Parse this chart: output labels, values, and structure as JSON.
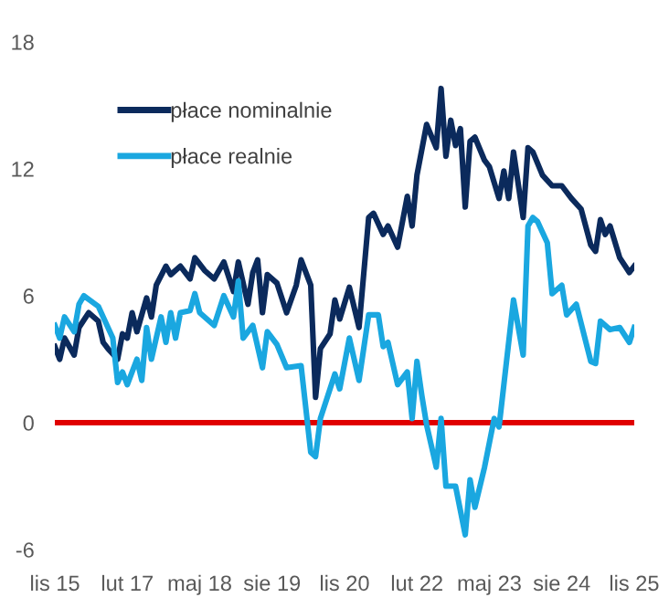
{
  "chart_data": {
    "type": "line",
    "xlim": [
      "2015-11",
      "2025-11"
    ],
    "ylim": [
      -6,
      18
    ],
    "yticks": [
      -6,
      0,
      6,
      12,
      18
    ],
    "xticks": [
      {
        "value": "2015-11",
        "label": "lis 15"
      },
      {
        "value": "2017-02",
        "label": "lut 17"
      },
      {
        "value": "2018-05",
        "label": "maj 18"
      },
      {
        "value": "2019-08",
        "label": "sie 19"
      },
      {
        "value": "2020-11",
        "label": "lis 20"
      },
      {
        "value": "2022-02",
        "label": "lut 22"
      },
      {
        "value": "2023-05",
        "label": "maj 23"
      },
      {
        "value": "2024-08",
        "label": "sie 24"
      },
      {
        "value": "2025-11",
        "label": "lis 25"
      }
    ],
    "grid": false,
    "legend": "top left",
    "line_style": "solid",
    "marker": "none",
    "ref_lines": [
      {
        "axis": "y",
        "value": 0,
        "color": "#e00000",
        "line_style": "solid"
      }
    ],
    "series": [
      {
        "name": "płace nominalnie",
        "color": "#0b2a5c",
        "x": [
          "2015-11",
          "2015-12",
          "2016-01",
          "2016-03",
          "2016-04",
          "2016-06",
          "2016-08",
          "2016-09",
          "2016-10",
          "2016-12",
          "2017-01",
          "2017-02",
          "2017-03",
          "2017-04",
          "2017-06",
          "2017-07",
          "2017-08",
          "2017-10",
          "2017-11",
          "2018-01",
          "2018-03",
          "2018-04",
          "2018-06",
          "2018-08",
          "2018-10",
          "2018-12",
          "2019-01",
          "2019-03",
          "2019-04",
          "2019-05",
          "2019-06",
          "2019-07",
          "2019-09",
          "2019-11",
          "2020-01",
          "2020-02",
          "2020-04",
          "2020-05",
          "2020-06",
          "2020-08",
          "2020-09",
          "2020-10",
          "2020-12",
          "2021-02",
          "2021-04",
          "2021-05",
          "2021-07",
          "2021-08",
          "2021-10",
          "2021-12",
          "2022-01",
          "2022-02",
          "2022-04",
          "2022-06",
          "2022-07",
          "2022-08",
          "2022-09",
          "2022-10",
          "2022-11",
          "2022-12",
          "2023-01",
          "2023-02",
          "2023-04",
          "2023-05",
          "2023-07",
          "2023-08",
          "2023-09",
          "2023-10",
          "2023-12",
          "2024-01",
          "2024-02",
          "2024-04",
          "2024-06",
          "2024-08",
          "2024-10",
          "2024-12",
          "2025-02",
          "2025-03",
          "2025-04",
          "2025-05",
          "2025-06",
          "2025-08",
          "2025-10",
          "2025-11"
        ],
        "values": [
          3.6,
          3.0,
          4.0,
          3.2,
          4.5,
          5.2,
          4.8,
          3.8,
          3.5,
          3.0,
          4.2,
          4.0,
          5.2,
          4.3,
          5.9,
          5.0,
          6.5,
          7.4,
          7.0,
          7.4,
          6.8,
          7.8,
          7.2,
          6.8,
          7.6,
          6.2,
          7.6,
          5.6,
          7.1,
          7.7,
          5.2,
          7.0,
          6.6,
          5.2,
          6.5,
          7.7,
          6.5,
          1.2,
          3.5,
          4.2,
          5.8,
          4.9,
          6.4,
          4.5,
          9.7,
          9.9,
          8.9,
          9.3,
          8.3,
          10.7,
          9.3,
          11.7,
          14.1,
          13.0,
          15.8,
          12.6,
          14.3,
          13.1,
          13.9,
          10.2,
          13.3,
          13.5,
          12.4,
          12.1,
          10.6,
          11.9,
          10.6,
          12.8,
          9.7,
          13.0,
          12.8,
          11.7,
          11.2,
          11.2,
          10.6,
          10.1,
          8.4,
          8.1,
          9.6,
          8.9,
          9.3,
          7.8,
          7.1,
          7.4
        ]
      },
      {
        "name": "płace realnie",
        "color": "#1aa7e0",
        "x": [
          "2015-11",
          "2015-12",
          "2016-01",
          "2016-03",
          "2016-04",
          "2016-05",
          "2016-08",
          "2016-10",
          "2016-11",
          "2016-12",
          "2017-01",
          "2017-02",
          "2017-04",
          "2017-05",
          "2017-06",
          "2017-07",
          "2017-09",
          "2017-10",
          "2017-11",
          "2017-12",
          "2018-01",
          "2018-03",
          "2018-04",
          "2018-05",
          "2018-08",
          "2018-10",
          "2018-12",
          "2019-01",
          "2019-02",
          "2019-04",
          "2019-06",
          "2019-07",
          "2019-09",
          "2019-11",
          "2020-02",
          "2020-04",
          "2020-05",
          "2020-06",
          "2020-09",
          "2020-10",
          "2020-12",
          "2021-02",
          "2021-04",
          "2021-06",
          "2021-07",
          "2021-08",
          "2021-10",
          "2021-12",
          "2022-01",
          "2022-02",
          "2022-03",
          "2022-04",
          "2022-06",
          "2022-07",
          "2022-08",
          "2022-10",
          "2022-12",
          "2023-01",
          "2023-02",
          "2023-04",
          "2023-06",
          "2023-07",
          "2023-08",
          "2023-10",
          "2023-12",
          "2024-01",
          "2024-02",
          "2024-03",
          "2024-05",
          "2024-06",
          "2024-08",
          "2024-09",
          "2024-11",
          "2025-02",
          "2025-03",
          "2025-04",
          "2025-06",
          "2025-08",
          "2025-10",
          "2025-11"
        ],
        "values": [
          4.6,
          4.0,
          5.0,
          4.3,
          5.6,
          6.0,
          5.5,
          4.5,
          4.0,
          1.9,
          2.4,
          1.8,
          3.0,
          2.0,
          4.5,
          3.0,
          5.0,
          3.8,
          5.2,
          4.0,
          5.2,
          5.3,
          6.1,
          5.2,
          4.6,
          6.0,
          5.0,
          6.7,
          4.0,
          4.6,
          2.6,
          4.3,
          3.7,
          2.6,
          2.7,
          -1.4,
          -1.6,
          0.2,
          2.3,
          1.6,
          4.0,
          2.0,
          5.1,
          5.1,
          3.6,
          3.8,
          1.8,
          2.4,
          0.2,
          2.9,
          1.3,
          -0.1,
          -2.1,
          0.2,
          -3.0,
          -3.0,
          -5.3,
          -2.7,
          -4.0,
          -2.1,
          0.2,
          -0.2,
          1.8,
          5.8,
          3.2,
          9.3,
          9.7,
          9.5,
          8.5,
          6.1,
          6.5,
          5.1,
          5.6,
          2.9,
          2.8,
          4.8,
          4.4,
          4.5,
          3.8,
          4.5
        ]
      }
    ]
  }
}
